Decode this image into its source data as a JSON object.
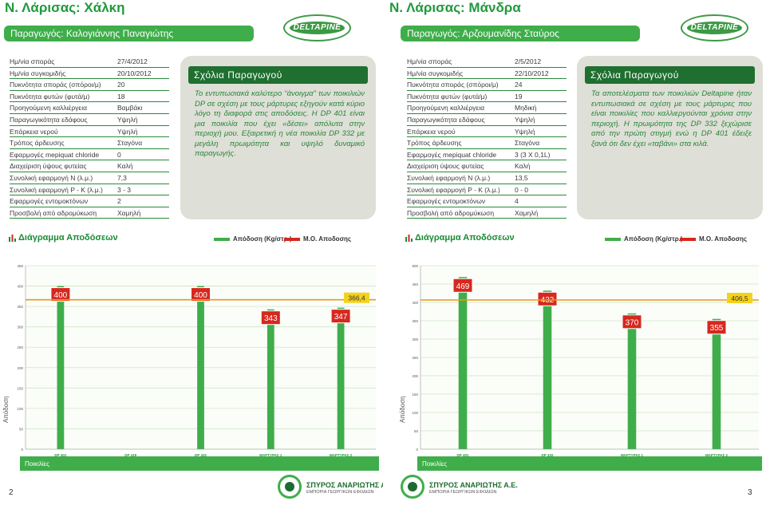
{
  "brand": {
    "logo_text": "DELTAPINE",
    "colors": {
      "green": "#3fae4a",
      "dark_green": "#1f6f30",
      "bar_red": "#d6281e",
      "avg_line": "#e89a1b"
    }
  },
  "pages": [
    {
      "title": "Ν. Λάρισας: Χάλκη",
      "producer": "Παραγωγός: Καλογιάννης Παναγιώτης",
      "specs": [
        {
          "k": "Ημ/νία σποράς",
          "v": "27/4/2012"
        },
        {
          "k": "Ημ/νία συγκομιδής",
          "v": "20/10/2012"
        },
        {
          "k": "Πυκνότητα σποράς (σπόροι/μ)",
          "v": "20"
        },
        {
          "k": "Πυκνότητα φυτών (φυτά/μ)",
          "v": "18"
        },
        {
          "k": "Προηγούμενη καλλιέργεια",
          "v": "Βαμβάκι"
        },
        {
          "k": "Παραγωγικότητα εδάφους",
          "v": "Υψηλή"
        },
        {
          "k": "Επάρκεια νερού",
          "v": "Υψηλή"
        },
        {
          "k": "Τρόπος άρδευσης",
          "v": "Σταγόνα"
        },
        {
          "k": "Εφαρμογές mepiquat chloride",
          "v": "0"
        },
        {
          "k": "Διαχείριση ύψους φυτείας",
          "v": "Καλή"
        },
        {
          "k": "Συνολική εφαρμογή N (λ.μ.)",
          "v": "7,3"
        },
        {
          "k": "Συνολική εφαρμογή P - K (λ.μ.)",
          "v": "3 - 3"
        },
        {
          "k": "Εφαρμογές εντομοκτόνων",
          "v": "2"
        },
        {
          "k": "Προσβολή από αδρομύκωση",
          "v": "Χαμηλή"
        }
      ],
      "comments_title": "Σχόλια Παραγωγού",
      "comments_text": "Το εντυπωσιακά καλύτερο “άνοιγμα” των ποικιλιών DP σε σχέση με τους μάρτυρες εξηγούν κατά κύριο λόγο τη διαφορά στις αποδόσεις. Η DP 401 είναι μια ποικιλία που έχει «δέσει» απόλυτα στην περιοχή μου. Εξαιρετική η νέα ποικιλία DP 332 με μεγάλη πρωιμότητα και υψηλό δυναμικό παραγωγής.",
      "diagram_title": "Διάγραμμα Αποδόσεων",
      "legend_yield": "Απόδοση (Kg/στρ.)",
      "legend_avg": "Μ.Ο. Αποδοσης",
      "axis_label": "Απόδοση",
      "varieties_label": "Ποικιλίες",
      "page_number": "2",
      "chart_data": {
        "type": "bar",
        "categories": [
          "DP 401",
          "DP 419",
          "DP 332",
          "ΜΑΡΤΥΡΑΣ 1",
          "ΜΑΡΤΥΡΑΣ 2"
        ],
        "values": [
          400,
          0,
          400,
          343,
          347
        ],
        "value_labels": [
          "400",
          "",
          "400",
          "343",
          "347"
        ],
        "average": 366.4,
        "average_label": "366,4",
        "yticks": [
          0,
          50,
          100,
          150,
          200,
          250,
          300,
          350,
          400,
          450
        ],
        "ylim": [
          0,
          450
        ],
        "grid": true
      }
    },
    {
      "title": "Ν. Λάρισας: Μάνδρα",
      "producer": "Παραγωγός: Αρζουμανίδης Σταύρος",
      "specs": [
        {
          "k": "Ημ/νία σποράς",
          "v": "2/5/2012"
        },
        {
          "k": "Ημ/νία συγκομιδής",
          "v": "22/10/2012"
        },
        {
          "k": "Πυκνότητα σποράς (σπόροι/μ)",
          "v": "24"
        },
        {
          "k": "Πυκνότητα φυτών (φυτά/μ)",
          "v": "19"
        },
        {
          "k": "Προηγούμενη καλλιέργεια",
          "v": "Μηδική"
        },
        {
          "k": "Παραγωγικότητα εδάφους",
          "v": "Υψηλή"
        },
        {
          "k": "Επάρκεια νερού",
          "v": "Υψηλή"
        },
        {
          "k": "Τρόπος άρδευσης",
          "v": "Σταγόνα"
        },
        {
          "k": "Εφαρμογές mepiquat chloride",
          "v": "3 (3 X 0,1L)"
        },
        {
          "k": "Διαχείριση ύψους φυτείας",
          "v": "Καλή"
        },
        {
          "k": "Συνολική εφαρμογή N (λ.μ.)",
          "v": "13,5"
        },
        {
          "k": "Συνολική εφαρμογή P - K (λ.μ.)",
          "v": "0 - 0"
        },
        {
          "k": "Εφαρμογές εντομοκτόνων",
          "v": "4"
        },
        {
          "k": "Προσβολή από αδρομύκωση",
          "v": "Χαμηλή"
        }
      ],
      "comments_title": "Σχόλια Παραγωγού",
      "comments_text": "Τα αποτελέσματα των ποικιλιών Deltapine ήταν εντυπωσιακά σε σχέση με τους μάρτυρες που είναι ποικιλίες που καλλιεργούνται χρόνια στην περιοχή. Η πρωιμότητα της DP 332 ξεχώρισε από την πρώτη στιγμή ενώ η DP 401 έδειξε ξανά ότι δεν έχει «ταβάνι» στα κιλά.",
      "diagram_title": "Διάγραμμα Αποδόσεων",
      "legend_yield": "Απόδοση (Kg/στρ.)",
      "legend_avg": "Μ.Ο. Αποδοσης",
      "axis_label": "Απόδοση",
      "varieties_label": "Ποικιλίες",
      "page_number": "3",
      "chart_data": {
        "type": "bar",
        "categories": [
          "DP 401",
          "DP 332",
          "ΜΑΡΤΥΡΑΣ 1",
          "ΜΑΡΤΥΡΑΣ 2"
        ],
        "values": [
          469,
          432,
          370,
          355
        ],
        "value_labels": [
          "469",
          "432",
          "370",
          "355"
        ],
        "average": 406.5,
        "average_label": "406,5",
        "yticks": [
          0,
          50,
          100,
          150,
          200,
          250,
          300,
          350,
          400,
          450,
          500
        ],
        "ylim": [
          0,
          500
        ],
        "grid": true
      }
    }
  ],
  "footer": {
    "company": "ΣΠΥΡΟΣ ΑΝΑΡΙΩΤΗΣ Α.Ε.",
    "subtitle": "ΕΜΠΟΡΙΑ ΓΕΩΡΓΙΚΩΝ ΕΦΟΔΙΩΝ"
  }
}
